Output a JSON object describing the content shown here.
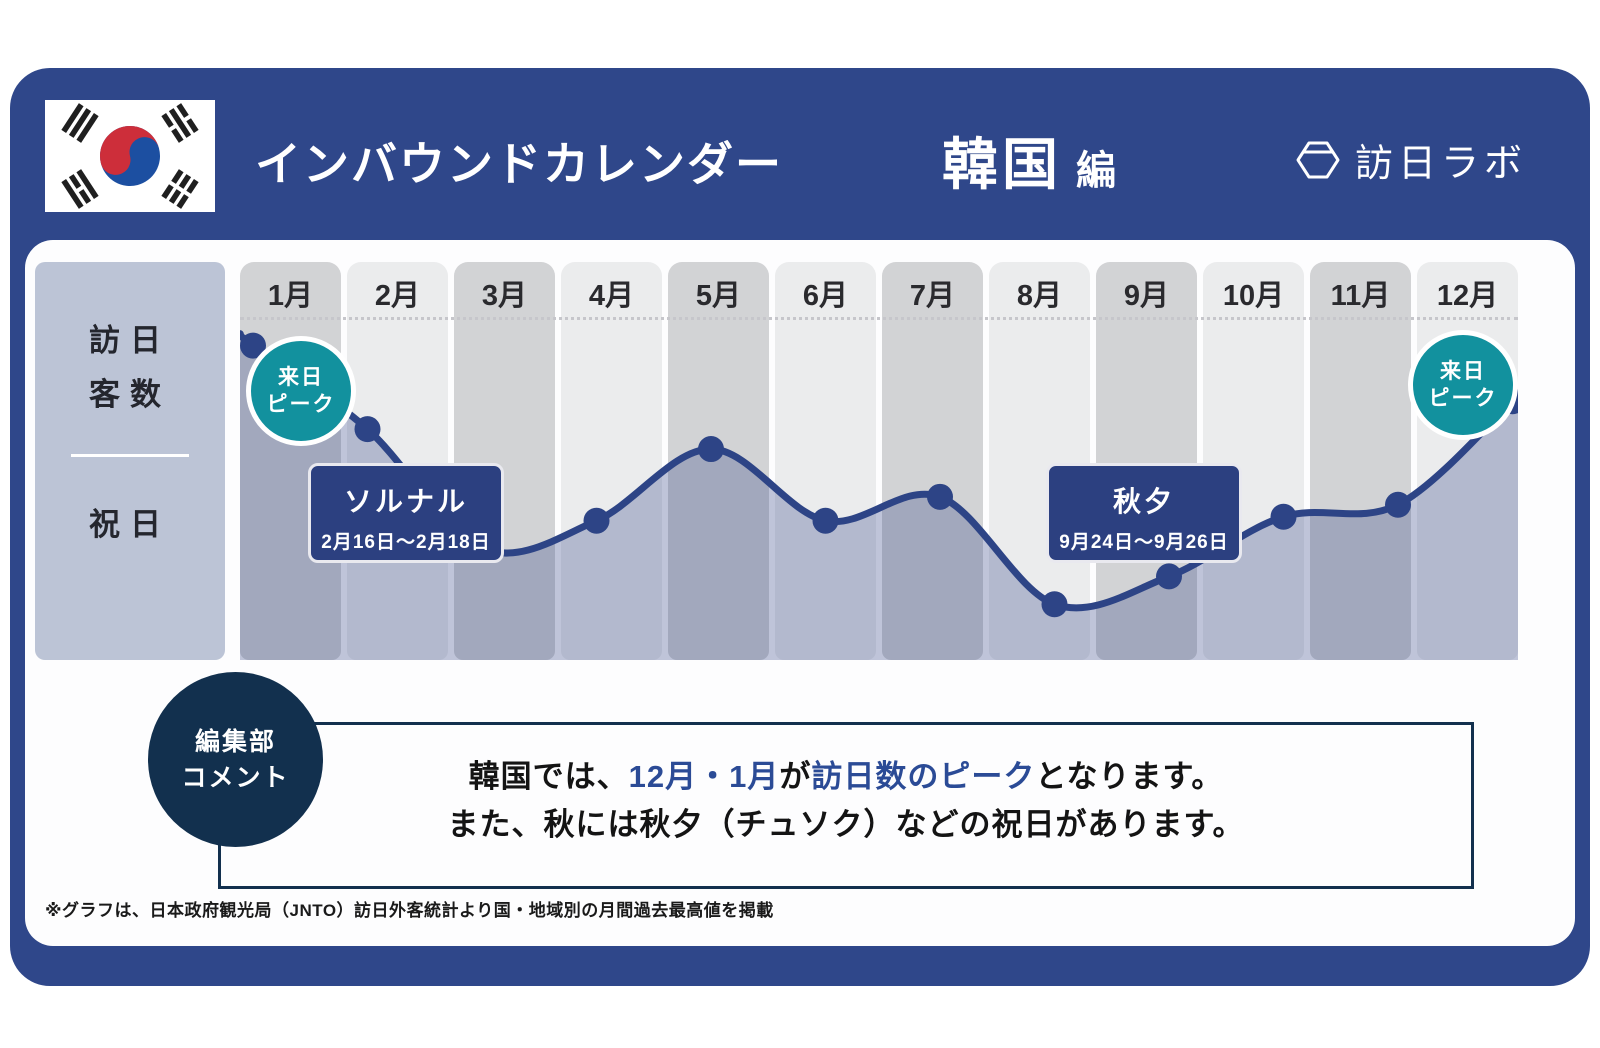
{
  "header": {
    "title": "インバウンドカレンダー",
    "country": "韓国",
    "edition_suffix": "編",
    "brand": "訪日ラボ"
  },
  "sidebar": {
    "visitors_line1": "訪日",
    "visitors_line2": "客数",
    "holiday_label": "祝日"
  },
  "months": [
    "1月",
    "2月",
    "3月",
    "4月",
    "5月",
    "6月",
    "7月",
    "8月",
    "9月",
    "10月",
    "11月",
    "12月"
  ],
  "chart_data": {
    "type": "line",
    "title": "インバウンドカレンダー 韓国編（月別訪日客数の推移）",
    "categories": [
      "1月",
      "2月",
      "3月",
      "4月",
      "5月",
      "6月",
      "7月",
      "8月",
      "9月",
      "10月",
      "11月",
      "12月"
    ],
    "values": [
      79,
      58,
      28,
      35,
      53,
      35,
      41,
      14,
      21,
      36,
      39,
      65
    ],
    "ylim": [
      0,
      100
    ],
    "left_edge_level": 82,
    "grid": false,
    "legend": false,
    "annotations": [
      {
        "month": "1月",
        "label": "来日ピーク"
      },
      {
        "month": "12月",
        "label": "来日ピーク"
      },
      {
        "month": "2月",
        "label": "ソルナル",
        "dates": "2月16日〜2月18日"
      },
      {
        "month": "9月",
        "label": "秋夕",
        "dates": "9月24日〜9月26日"
      }
    ]
  },
  "peaks": [
    {
      "line1": "来日",
      "line2": "ピーク"
    },
    {
      "line1": "来日",
      "line2": "ピーク"
    }
  ],
  "holidays": [
    {
      "name": "ソルナル",
      "dates": "2月16日〜2月18日"
    },
    {
      "name": "秋夕",
      "dates": "9月24日〜9月26日"
    }
  ],
  "comment": {
    "badge_line1": "編集部",
    "badge_line2": "コメント",
    "line1": [
      {
        "text": "韓国では、",
        "accent": false
      },
      {
        "text": "12月・1月",
        "accent": true
      },
      {
        "text": "が",
        "accent": false
      },
      {
        "text": "訪日数のピーク",
        "accent": true
      },
      {
        "text": "となります。",
        "accent": false
      }
    ],
    "line2": "また、秋には秋夕（チュソク）などの祝日があります。"
  },
  "footnote": "※グラフは、日本政府観光局（JNTO）訪日外客統計より国・地域別の月間過去最高値を掲載",
  "colors": {
    "frame": "#2f478a",
    "teal": "#12919e",
    "line": "#2d4486",
    "fill": "rgba(63,77,139,0.32)",
    "sidebar": "#bcc4d6",
    "column_dark": "#d2d3d5",
    "column_light": "#ebeced",
    "holiday_box": "#2c4080",
    "editor_navy": "#12304e",
    "accent_text": "#2b4b96",
    "flag_red": "#cd2e3a",
    "flag_blue": "#1c4fa1"
  }
}
